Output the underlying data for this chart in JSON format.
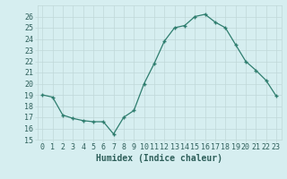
{
  "x": [
    0,
    1,
    2,
    3,
    4,
    5,
    6,
    7,
    8,
    9,
    10,
    11,
    12,
    13,
    14,
    15,
    16,
    17,
    18,
    19,
    20,
    21,
    22,
    23
  ],
  "y": [
    19.0,
    18.8,
    17.2,
    16.9,
    16.7,
    16.6,
    16.6,
    15.5,
    17.0,
    17.6,
    20.0,
    21.8,
    23.8,
    25.0,
    25.2,
    26.0,
    26.2,
    25.5,
    25.0,
    23.5,
    22.0,
    21.2,
    20.3,
    18.9
  ],
  "xlabel": "Humidex (Indice chaleur)",
  "ylim": [
    15,
    27
  ],
  "xlim": [
    -0.5,
    23.5
  ],
  "yticks": [
    15,
    16,
    17,
    18,
    19,
    20,
    21,
    22,
    23,
    24,
    25,
    26
  ],
  "xtick_labels": [
    "0",
    "1",
    "2",
    "3",
    "4",
    "5",
    "6",
    "7",
    "8",
    "9",
    "10",
    "11",
    "12",
    "13",
    "14",
    "15",
    "16",
    "17",
    "18",
    "19",
    "20",
    "21",
    "22",
    "23"
  ],
  "line_color": "#2e7d6e",
  "marker": "+",
  "bg_color": "#d6eef0",
  "grid_color": "#c0d8d8",
  "tick_label_color": "#2e5f5a",
  "label_color": "#2e5f5a",
  "tick_fontsize": 6,
  "xlabel_fontsize": 7
}
